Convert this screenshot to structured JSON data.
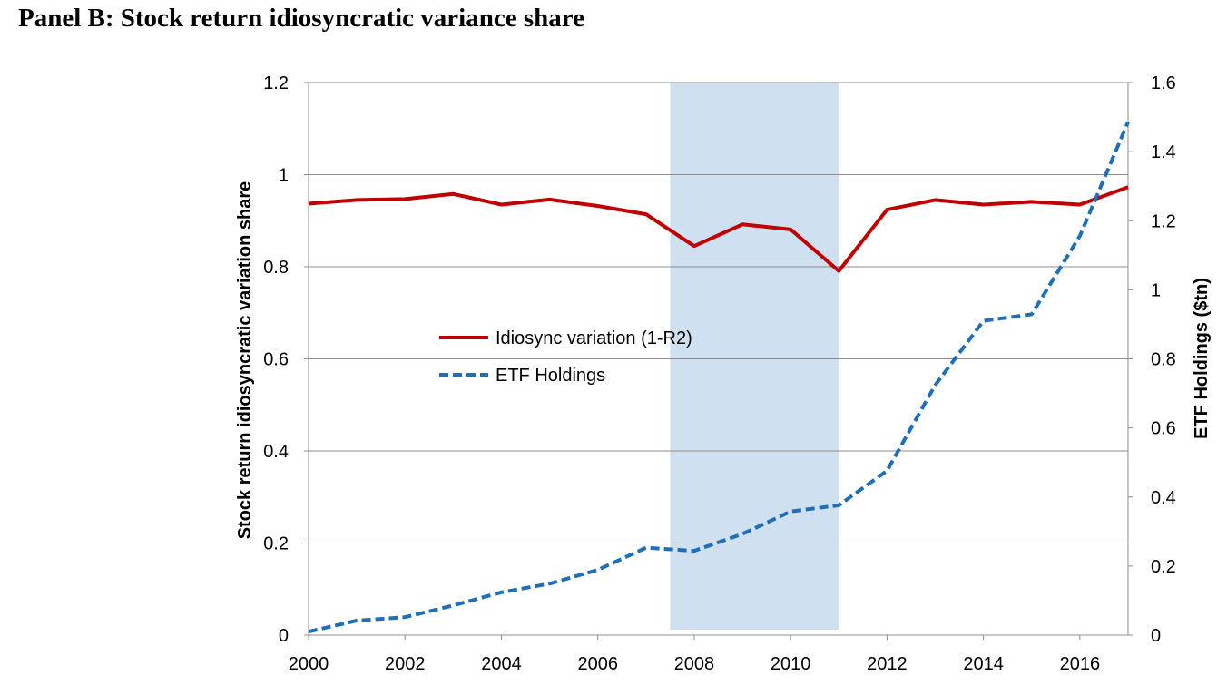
{
  "panel_title": "Panel B: Stock return idiosyncratic variance share",
  "chart_data": {
    "type": "line",
    "title": "Panel B: Stock return idiosyncratic variance share",
    "xlabel": "",
    "ylabel": "Stock return idiosyncratic variation share",
    "y2label": "ETF Holdings ($tn)",
    "xlim": [
      2000,
      2017
    ],
    "ylim": [
      0,
      1.2
    ],
    "y2lim": [
      0,
      1.6
    ],
    "x_ticks": [
      "2000",
      "2002",
      "2004",
      "2006",
      "2008",
      "2010",
      "2012",
      "2014",
      "2016"
    ],
    "y_ticks": [
      "0",
      "0.2",
      "0.4",
      "0.6",
      "0.8",
      "1",
      "1.2"
    ],
    "y2_ticks": [
      "0",
      "0.2",
      "0.4",
      "0.6",
      "0.8",
      "1",
      "1.2",
      "1.4",
      "1.6"
    ],
    "grid": true,
    "legend_position": "center-left",
    "shaded_region": {
      "x_start": 2007.5,
      "x_end": 2011.0,
      "color": "#cfe0f1"
    },
    "series": [
      {
        "name": "Idiosync variation (1-R2)",
        "axis": "left",
        "color": "#c00000",
        "style": "solid",
        "x": [
          2000,
          2001,
          2002,
          2003,
          2004,
          2005,
          2006,
          2007,
          2008,
          2009,
          2010,
          2011,
          2012,
          2013,
          2014,
          2015,
          2016,
          2017
        ],
        "values": [
          0.937,
          0.945,
          0.947,
          0.958,
          0.935,
          0.946,
          0.932,
          0.914,
          0.845,
          0.892,
          0.881,
          0.791,
          0.924,
          0.945,
          0.935,
          0.941,
          0.935,
          0.973
        ]
      },
      {
        "name": "ETF Holdings",
        "axis": "right",
        "color": "#1f6fb8",
        "style": "dashed",
        "x": [
          2000,
          2001,
          2002,
          2003,
          2004,
          2005,
          2006,
          2007,
          2008,
          2009,
          2010,
          2011,
          2012,
          2013,
          2014,
          2015,
          2016,
          2017
        ],
        "values": [
          0.01,
          0.042,
          0.052,
          0.086,
          0.124,
          0.149,
          0.189,
          0.253,
          0.244,
          0.293,
          0.358,
          0.376,
          0.476,
          0.724,
          0.91,
          0.929,
          1.156,
          1.486
        ]
      }
    ]
  }
}
